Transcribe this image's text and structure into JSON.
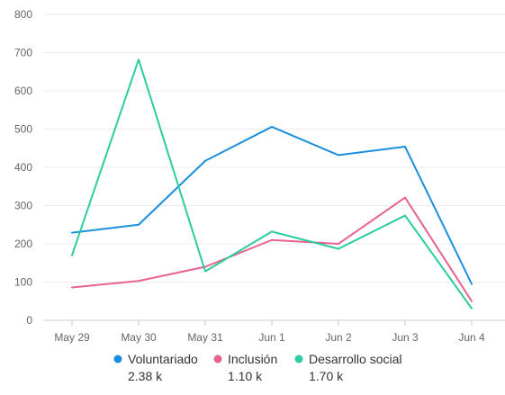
{
  "chart_data": {
    "type": "line",
    "categories": [
      "May 29",
      "May 30",
      "May 31",
      "Jun 1",
      "Jun 2",
      "Jun 3",
      "Jun 4"
    ],
    "ylim": [
      0,
      800
    ],
    "yticks": [
      0,
      100,
      200,
      300,
      400,
      500,
      600,
      700,
      800
    ],
    "grid": true,
    "legend_position": "bottom",
    "series": [
      {
        "name": "Voluntariado",
        "color": "#1a8fdd",
        "total": "2.38 k",
        "values": [
          229,
          250,
          417,
          506,
          432,
          454,
          95
        ]
      },
      {
        "name": "Inclusión",
        "color": "#e8628f",
        "total": "1.10 k",
        "values": [
          86,
          103,
          140,
          210,
          200,
          321,
          50
        ]
      },
      {
        "name": "Desarrollo social",
        "color": "#2ccca0",
        "total": "1.70 k",
        "values": [
          170,
          682,
          128,
          232,
          187,
          274,
          31
        ]
      }
    ]
  }
}
